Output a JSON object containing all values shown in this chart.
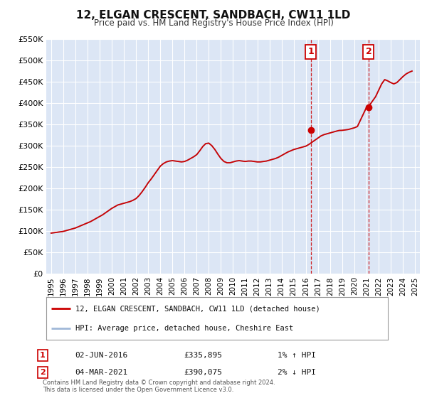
{
  "title": "12, ELGAN CRESCENT, SANDBACH, CW11 1LD",
  "subtitle": "Price paid vs. HM Land Registry's House Price Index (HPI)",
  "bg_color": "#ffffff",
  "plot_bg_color": "#dce6f5",
  "grid_color": "#ffffff",
  "hpi_color": "#a0b8d8",
  "price_color": "#cc0000",
  "ylim": [
    0,
    550000
  ],
  "yticks": [
    0,
    50000,
    100000,
    150000,
    200000,
    250000,
    300000,
    350000,
    400000,
    450000,
    500000,
    550000
  ],
  "ytick_labels": [
    "£0",
    "£50K",
    "£100K",
    "£150K",
    "£200K",
    "£250K",
    "£300K",
    "£350K",
    "£400K",
    "£450K",
    "£500K",
    "£550K"
  ],
  "xlim_start": 1994.6,
  "xlim_end": 2025.4,
  "xticks": [
    1995,
    1996,
    1997,
    1998,
    1999,
    2000,
    2001,
    2002,
    2003,
    2004,
    2005,
    2006,
    2007,
    2008,
    2009,
    2010,
    2011,
    2012,
    2013,
    2014,
    2015,
    2016,
    2017,
    2018,
    2019,
    2020,
    2021,
    2022,
    2023,
    2024,
    2025
  ],
  "marker1_x": 2016.42,
  "marker1_y": 335895,
  "marker1_label": "1",
  "marker1_date": "02-JUN-2016",
  "marker1_price": "£335,895",
  "marker1_hpi": "1% ↑ HPI",
  "marker2_x": 2021.17,
  "marker2_y": 390075,
  "marker2_label": "2",
  "marker2_date": "04-MAR-2021",
  "marker2_price": "£390,075",
  "marker2_hpi": "2% ↓ HPI",
  "legend_line1": "12, ELGAN CRESCENT, SANDBACH, CW11 1LD (detached house)",
  "legend_line2": "HPI: Average price, detached house, Cheshire East",
  "footer": "Contains HM Land Registry data © Crown copyright and database right 2024.\nThis data is licensed under the Open Government Licence v3.0.",
  "hpi_data_x": [
    1995.0,
    1995.25,
    1995.5,
    1995.75,
    1996.0,
    1996.25,
    1996.5,
    1996.75,
    1997.0,
    1997.25,
    1997.5,
    1997.75,
    1998.0,
    1998.25,
    1998.5,
    1998.75,
    1999.0,
    1999.25,
    1999.5,
    1999.75,
    2000.0,
    2000.25,
    2000.5,
    2000.75,
    2001.0,
    2001.25,
    2001.5,
    2001.75,
    2002.0,
    2002.25,
    2002.5,
    2002.75,
    2003.0,
    2003.25,
    2003.5,
    2003.75,
    2004.0,
    2004.25,
    2004.5,
    2004.75,
    2005.0,
    2005.25,
    2005.5,
    2005.75,
    2006.0,
    2006.25,
    2006.5,
    2006.75,
    2007.0,
    2007.25,
    2007.5,
    2007.75,
    2008.0,
    2008.25,
    2008.5,
    2008.75,
    2009.0,
    2009.25,
    2009.5,
    2009.75,
    2010.0,
    2010.25,
    2010.5,
    2010.75,
    2011.0,
    2011.25,
    2011.5,
    2011.75,
    2012.0,
    2012.25,
    2012.5,
    2012.75,
    2013.0,
    2013.25,
    2013.5,
    2013.75,
    2014.0,
    2014.25,
    2014.5,
    2014.75,
    2015.0,
    2015.25,
    2015.5,
    2015.75,
    2016.0,
    2016.25,
    2016.5,
    2016.75,
    2017.0,
    2017.25,
    2017.5,
    2017.75,
    2018.0,
    2018.25,
    2018.5,
    2018.75,
    2019.0,
    2019.25,
    2019.5,
    2019.75,
    2020.0,
    2020.25,
    2020.5,
    2020.75,
    2021.0,
    2021.25,
    2021.5,
    2021.75,
    2022.0,
    2022.25,
    2022.5,
    2022.75,
    2023.0,
    2023.25,
    2023.5,
    2023.75,
    2024.0,
    2024.25,
    2024.5,
    2024.75
  ],
  "hpi_data_y": [
    95000,
    96000,
    97000,
    98000,
    99000,
    101000,
    103000,
    105000,
    107000,
    110000,
    113000,
    116000,
    119000,
    122000,
    126000,
    130000,
    134000,
    138000,
    143000,
    148000,
    153000,
    157000,
    161000,
    163000,
    165000,
    167000,
    169000,
    172000,
    176000,
    183000,
    192000,
    202000,
    213000,
    222000,
    232000,
    242000,
    252000,
    258000,
    262000,
    264000,
    265000,
    264000,
    263000,
    262000,
    263000,
    266000,
    270000,
    274000,
    279000,
    288000,
    298000,
    305000,
    306000,
    300000,
    291000,
    280000,
    270000,
    263000,
    260000,
    260000,
    262000,
    264000,
    265000,
    264000,
    263000,
    264000,
    264000,
    263000,
    262000,
    262000,
    263000,
    264000,
    266000,
    268000,
    270000,
    273000,
    277000,
    281000,
    285000,
    288000,
    291000,
    293000,
    295000,
    297000,
    299000,
    303000,
    308000,
    313000,
    318000,
    323000,
    326000,
    328000,
    330000,
    332000,
    334000,
    335000,
    336000,
    337000,
    338000,
    340000,
    342000,
    345000,
    360000,
    375000,
    390000,
    395000,
    405000,
    415000,
    430000,
    445000,
    455000,
    452000,
    448000,
    445000,
    448000,
    455000,
    462000,
    468000,
    472000,
    475000
  ],
  "price_data_x": [
    1995.0,
    1995.25,
    1995.5,
    1995.75,
    1996.0,
    1996.25,
    1996.5,
    1996.75,
    1997.0,
    1997.25,
    1997.5,
    1997.75,
    1998.0,
    1998.25,
    1998.5,
    1998.75,
    1999.0,
    1999.25,
    1999.5,
    1999.75,
    2000.0,
    2000.25,
    2000.5,
    2000.75,
    2001.0,
    2001.25,
    2001.5,
    2001.75,
    2002.0,
    2002.25,
    2002.5,
    2002.75,
    2003.0,
    2003.25,
    2003.5,
    2003.75,
    2004.0,
    2004.25,
    2004.5,
    2004.75,
    2005.0,
    2005.25,
    2005.5,
    2005.75,
    2006.0,
    2006.25,
    2006.5,
    2006.75,
    2007.0,
    2007.25,
    2007.5,
    2007.75,
    2008.0,
    2008.25,
    2008.5,
    2008.75,
    2009.0,
    2009.25,
    2009.5,
    2009.75,
    2010.0,
    2010.25,
    2010.5,
    2010.75,
    2011.0,
    2011.25,
    2011.5,
    2011.75,
    2012.0,
    2012.25,
    2012.5,
    2012.75,
    2013.0,
    2013.25,
    2013.5,
    2013.75,
    2014.0,
    2014.25,
    2014.5,
    2014.75,
    2015.0,
    2015.25,
    2015.5,
    2015.75,
    2016.0,
    2016.25,
    2016.5,
    2016.75,
    2017.0,
    2017.25,
    2017.5,
    2017.75,
    2018.0,
    2018.25,
    2018.5,
    2018.75,
    2019.0,
    2019.25,
    2019.5,
    2019.75,
    2020.0,
    2020.25,
    2020.5,
    2020.75,
    2021.0,
    2021.25,
    2021.5,
    2021.75,
    2022.0,
    2022.25,
    2022.5,
    2022.75,
    2023.0,
    2023.25,
    2023.5,
    2023.75,
    2024.0,
    2024.25,
    2024.5,
    2024.75
  ],
  "price_data_y": [
    95000,
    96000,
    97000,
    98000,
    99000,
    101000,
    103000,
    105000,
    107000,
    110000,
    113000,
    116000,
    119000,
    122000,
    126000,
    130000,
    134000,
    138000,
    143000,
    148000,
    153000,
    157000,
    161000,
    163000,
    165000,
    167000,
    169000,
    172000,
    176000,
    183000,
    192000,
    202000,
    213000,
    222000,
    232000,
    242000,
    252000,
    258000,
    262000,
    264000,
    265000,
    264000,
    263000,
    262000,
    263000,
    266000,
    270000,
    274000,
    279000,
    288000,
    298000,
    305000,
    306000,
    300000,
    291000,
    280000,
    270000,
    263000,
    260000,
    260000,
    262000,
    264000,
    265000,
    264000,
    263000,
    264000,
    264000,
    263000,
    262000,
    262000,
    263000,
    264000,
    266000,
    268000,
    270000,
    273000,
    277000,
    281000,
    285000,
    288000,
    291000,
    293000,
    295000,
    297000,
    299000,
    303000,
    308000,
    313000,
    318000,
    323000,
    326000,
    328000,
    330000,
    332000,
    334000,
    335895,
    336000,
    337000,
    338000,
    340000,
    342000,
    345000,
    360000,
    375000,
    390075,
    395000,
    405000,
    415000,
    430000,
    445000,
    455000,
    452000,
    448000,
    445000,
    448000,
    455000,
    462000,
    468000,
    472000,
    475000
  ]
}
